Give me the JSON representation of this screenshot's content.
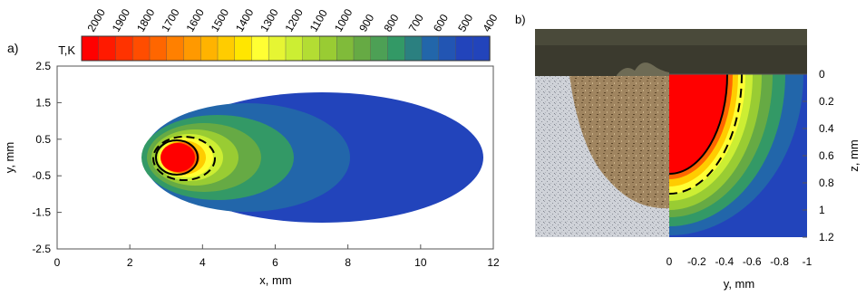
{
  "panel_a": {
    "label": "a)",
    "colorbar": {
      "title": "T,K",
      "ticks": [
        "2000",
        "1900",
        "1800",
        "1700",
        "1600",
        "1500",
        "1400",
        "1300",
        "1200",
        "1100",
        "1000",
        "900",
        "800",
        "700",
        "600",
        "500",
        "400"
      ]
    },
    "xlabel": "x, mm",
    "ylabel": "y, mm",
    "xticks": [
      "0",
      "2",
      "4",
      "6",
      "8",
      "10",
      "12"
    ],
    "yticks": [
      "2.5",
      "1.5",
      "0.5",
      "-0.5",
      "-1.5",
      "-2.5"
    ]
  },
  "panel_b": {
    "label": "b)",
    "xlabel": "y, mm",
    "ylabel": "z, mm",
    "xticks": [
      "0",
      "-0.2",
      "-0.4",
      "-0.6",
      "-0.8",
      "-1"
    ],
    "yticks": [
      "0",
      "0.2",
      "0.4",
      "0.6",
      "0.8",
      "1",
      "1.2"
    ]
  },
  "palette": [
    "#ff0000",
    "#ff3300",
    "#ff6600",
    "#ff9900",
    "#ffcc00",
    "#ffff33",
    "#ccee33",
    "#99cc33",
    "#66aa44",
    "#339966",
    "#2266aa",
    "#2244bb"
  ],
  "chart_data": [
    {
      "type": "heatmap",
      "panel": "a",
      "xlabel": "x, mm",
      "ylabel": "y, mm",
      "xlim": [
        0,
        12
      ],
      "ylim": [
        -2.5,
        2.5
      ],
      "colorbar_label": "T,K",
      "colorbar_range": [
        400,
        2000
      ],
      "colorbar_step": 100
    },
    {
      "type": "heatmap",
      "panel": "b",
      "xlabel": "y, mm",
      "ylabel": "z, mm",
      "xlim": [
        0,
        -1
      ],
      "ylim": [
        0,
        1.2
      ]
    }
  ]
}
